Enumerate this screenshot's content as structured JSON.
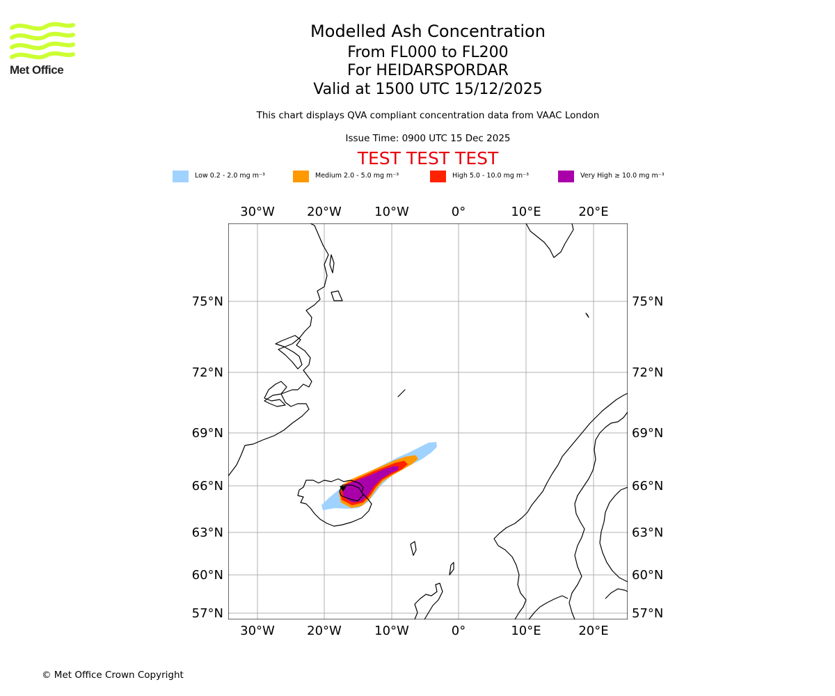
{
  "header": {
    "title": "Modelled Ash Concentration",
    "levels": "From FL000 to FL200",
    "volcano": "For HEIDARSPORDAR",
    "valid": "Valid at 1500 UTC 15/12/2025",
    "subtitle": "This chart displays QVA compliant concentration data from VAAC London",
    "issue_time": "Issue Time: 0900 UTC 15 Dec 2025",
    "test_banner": "TEST TEST TEST"
  },
  "logo": {
    "text": "Met Office",
    "color": "#ccff33"
  },
  "legend": [
    {
      "label": "Low 0.2 - 2.0 mg m⁻³",
      "color": "#a0d2ff"
    },
    {
      "label": "Medium 2.0 - 5.0 mg m⁻³",
      "color": "#ff9900"
    },
    {
      "label": "High 5.0 - 10.0 mg m⁻³",
      "color": "#ff2200"
    },
    {
      "label": "Very High  ≥  10.0 mg m⁻³",
      "color": "#aa00aa"
    }
  ],
  "map": {
    "lon_labels": [
      "30°W",
      "20°W",
      "10°W",
      "0°",
      "10°E",
      "20°E"
    ],
    "lat_labels": [
      "75°N",
      "72°N",
      "69°N",
      "66°N",
      "63°N",
      "60°N",
      "57°N"
    ]
  },
  "footer": {
    "copyright": "© Met Office Crown Copyright"
  }
}
